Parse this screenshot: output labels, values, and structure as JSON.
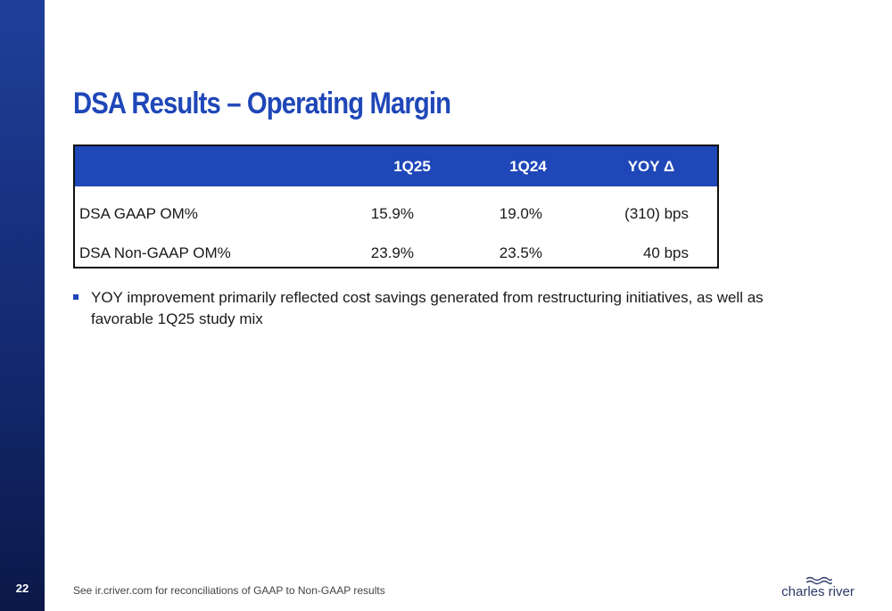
{
  "slide": {
    "page_number": "22",
    "title": "DSA Results – Operating Margin"
  },
  "table": {
    "headers": [
      "",
      "1Q25",
      "1Q24",
      "YOY Δ"
    ],
    "rows": [
      {
        "label": "DSA GAAP OM%",
        "q125": "15.9%",
        "q124": "19.0%",
        "yoy": "(310) bps"
      },
      {
        "label": "DSA Non-GAAP OM%",
        "q125": "23.9%",
        "q124": "23.5%",
        "yoy": "40 bps"
      }
    ]
  },
  "bullets": [
    "YOY improvement primarily reflected cost savings generated from restructuring initiatives, as well as favorable 1Q25 study mix"
  ],
  "footer": {
    "note": "See ir.criver.com for reconciliations of GAAP to Non-GAAP results",
    "logo_text": "charles river"
  },
  "colors": {
    "brand_blue": "#1f47b8",
    "sidebar_dark": "#0b1848",
    "logo_text": "#2b3a66"
  },
  "icons": [
    "bullet-square-icon",
    "logo-waves-icon"
  ]
}
